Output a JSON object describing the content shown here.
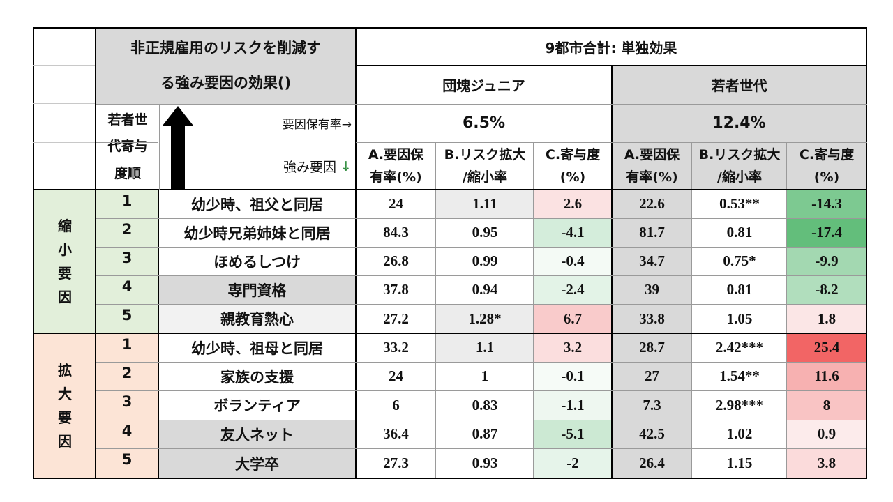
{
  "header": {
    "title_line1": "非正規雇用のリスクを削減す",
    "title_line2": "る強み要因の効果()",
    "region_label": "9都市合計: 単独効果",
    "group1": "団塊ジュニア",
    "group2": "若者世代",
    "prevalence_label": "要因保有率→",
    "strength_label": "強み要因",
    "strength_arrow": "↓",
    "rank_label_1": "若者世",
    "rank_label_2": "代寄与",
    "rank_label_3": "度順",
    "group1_rate": "6.5%",
    "group2_rate": "12.4%",
    "colA_1": "A.要因保",
    "colA_2": "有率(%)",
    "colB_1": "B.リスク拡大",
    "colB_2": "/縮小率",
    "colC_1": "C.寄与度",
    "colC_2": "(%)"
  },
  "sections": {
    "reduce": [
      "縮",
      "小",
      "要",
      "因"
    ],
    "expand": [
      "拡",
      "大",
      "要",
      "因"
    ]
  },
  "rows": [
    {
      "rank": "1",
      "factor": "幼少時、祖父と同居",
      "a1": "24",
      "b1": "1.11",
      "c1": "2.6",
      "a2": "22.6",
      "b2": "0.53**",
      "c2": "-14.3"
    },
    {
      "rank": "2",
      "factor": "幼少時兄弟姉妹と同居",
      "a1": "84.3",
      "b1": "0.95",
      "c1": "-4.1",
      "a2": "81.7",
      "b2": "0.81",
      "c2": "-17.4"
    },
    {
      "rank": "3",
      "factor": "ほめるしつけ",
      "a1": "26.8",
      "b1": "0.99",
      "c1": "-0.4",
      "a2": "34.7",
      "b2": "0.75*",
      "c2": "-9.9"
    },
    {
      "rank": "4",
      "factor": "専門資格",
      "a1": "37.8",
      "b1": "0.94",
      "c1": "-2.4",
      "a2": "39",
      "b2": "0.81",
      "c2": "-8.2"
    },
    {
      "rank": "5",
      "factor": "親教育熱心",
      "a1": "27.2",
      "b1": "1.28*",
      "c1": "6.7",
      "a2": "33.8",
      "b2": "1.05",
      "c2": "1.8"
    },
    {
      "rank": "1",
      "factor": "幼少時、祖母と同居",
      "a1": "33.2",
      "b1": "1.1",
      "c1": "3.2",
      "a2": "28.7",
      "b2": "2.42***",
      "c2": "25.4"
    },
    {
      "rank": "2",
      "factor": "家族の支援",
      "a1": "24",
      "b1": "1",
      "c1": "-0.1",
      "a2": "27",
      "b2": "1.54**",
      "c2": "11.6"
    },
    {
      "rank": "3",
      "factor": "ボランティア",
      "a1": "6",
      "b1": "0.83",
      "c1": "-1.1",
      "a2": "7.3",
      "b2": "2.98***",
      "c2": "8"
    },
    {
      "rank": "4",
      "factor": "友人ネット",
      "a1": "36.4",
      "b1": "0.87",
      "c1": "-5.1",
      "a2": "42.5",
      "b2": "1.02",
      "c2": "0.9"
    },
    {
      "rank": "5",
      "factor": "大学卒",
      "a1": "27.3",
      "b1": "0.93",
      "c1": "-2",
      "a2": "26.4",
      "b2": "1.15",
      "c2": "3.8"
    }
  ],
  "colors": {
    "header_gray": "#d9d9d9",
    "reduce_green": "#e2efda",
    "expand_peach": "#fce4d6",
    "factor_gray": "#d9d9d9",
    "factor_light": "#f2f2f2",
    "pink_strong": "#f26d6d",
    "pink_mid": "#f8b9b9",
    "green_strong": "#63be7b"
  }
}
